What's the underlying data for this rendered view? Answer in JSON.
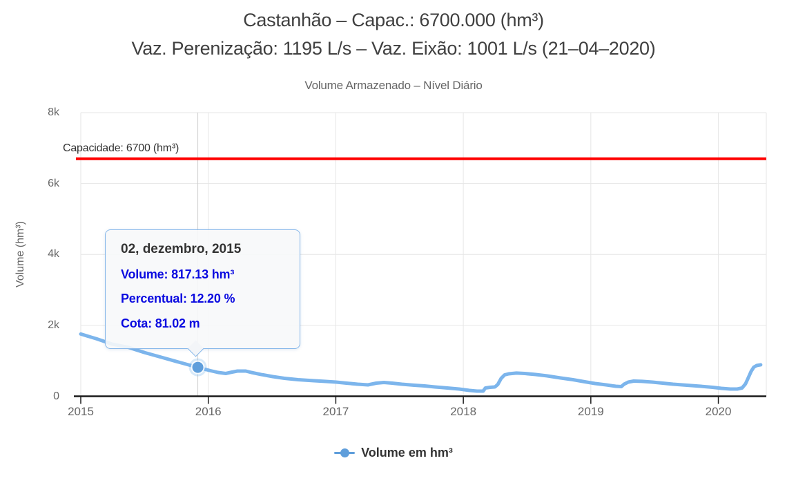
{
  "header": {
    "title_line1": "Castanhão – Capac.: 6700.000 (hm³)",
    "title_line2": "Vaz. Perenização: 1195 L/s – Vaz. Eixão: 1001 L/s (21–04–2020)",
    "subtitle": "Volume Armazenado – Nível Diário"
  },
  "tooltip": {
    "date": "02, dezembro, 2015",
    "volume_line": "Volume: 817.13 hm³",
    "percent_line": "Percentual: 12.20 %",
    "cota_line": "Cota: 81.02 m"
  },
  "legend": {
    "label": "Volume em hm³"
  },
  "colors": {
    "series_line": "#7cb5ec",
    "marker_fill": "#5f9edb",
    "marker_halo": "rgba(124,181,236,0.30)",
    "capacity_line": "#ff0000",
    "gridline": "#e6e6e6",
    "crosshair": "#cccccc",
    "axis_line": "#1a1a1a"
  },
  "chart_data": {
    "type": "line",
    "title": "Castanhão – Capac.: 6700.000 (hm³)",
    "subtitle": "Volume Armazenado – Nível Diário",
    "xlabel": "",
    "ylabel": "Volume (hm³)",
    "x_axis": {
      "min": 2015,
      "max": 2020.376,
      "ticks": [
        {
          "value": 2015,
          "label": "2015"
        },
        {
          "value": 2016,
          "label": "2016"
        },
        {
          "value": 2017,
          "label": "2017"
        },
        {
          "value": 2018,
          "label": "2018"
        },
        {
          "value": 2019,
          "label": "2019"
        },
        {
          "value": 2020,
          "label": "2020"
        }
      ]
    },
    "y_axis": {
      "min": 0,
      "max": 8000,
      "ticks": [
        {
          "value": 0,
          "label": "0"
        },
        {
          "value": 2000,
          "label": "2k"
        },
        {
          "value": 4000,
          "label": "4k"
        },
        {
          "value": 6000,
          "label": "6k"
        },
        {
          "value": 8000,
          "label": "8k"
        }
      ]
    },
    "capacity_line": {
      "value": 6700,
      "label": "Capacidade: 6700 (hm³)"
    },
    "highlight_point": {
      "x": 2015.918,
      "y": 817.13,
      "date": "02, dezembro, 2015",
      "percent": 12.2,
      "cota": 81.02
    },
    "series": [
      {
        "name": "Volume em hm³",
        "unit": "hm³",
        "points": [
          [
            2015.0,
            1756
          ],
          [
            2015.125,
            1620
          ],
          [
            2015.244,
            1473
          ],
          [
            2015.368,
            1385
          ],
          [
            2015.503,
            1229
          ],
          [
            2015.639,
            1093
          ],
          [
            2015.774,
            956
          ],
          [
            2015.882,
            849
          ],
          [
            2015.918,
            817.13
          ],
          [
            2015.964,
            771
          ],
          [
            2016.018,
            722
          ],
          [
            2016.077,
            673
          ],
          [
            2016.137,
            644
          ],
          [
            2016.186,
            683
          ],
          [
            2016.229,
            712
          ],
          [
            2016.294,
            712
          ],
          [
            2016.337,
            673
          ],
          [
            2016.413,
            615
          ],
          [
            2016.505,
            556
          ],
          [
            2016.597,
            507
          ],
          [
            2016.705,
            468
          ],
          [
            2016.83,
            439
          ],
          [
            2016.911,
            420
          ],
          [
            2017.003,
            400
          ],
          [
            2017.084,
            371
          ],
          [
            2017.171,
            341
          ],
          [
            2017.252,
            322
          ],
          [
            2017.317,
            371
          ],
          [
            2017.377,
            390
          ],
          [
            2017.442,
            371
          ],
          [
            2017.517,
            341
          ],
          [
            2017.615,
            312
          ],
          [
            2017.696,
            293
          ],
          [
            2017.777,
            263
          ],
          [
            2017.875,
            234
          ],
          [
            2017.967,
            205
          ],
          [
            2018.048,
            166
          ],
          [
            2018.107,
            146
          ],
          [
            2018.156,
            146
          ],
          [
            2018.173,
            234
          ],
          [
            2018.21,
            254
          ],
          [
            2018.248,
            263
          ],
          [
            2018.27,
            332
          ],
          [
            2018.297,
            507
          ],
          [
            2018.324,
            605
          ],
          [
            2018.356,
            634
          ],
          [
            2018.416,
            654
          ],
          [
            2018.481,
            644
          ],
          [
            2018.562,
            615
          ],
          [
            2018.654,
            576
          ],
          [
            2018.763,
            517
          ],
          [
            2018.86,
            468
          ],
          [
            2018.952,
            410
          ],
          [
            2019.033,
            361
          ],
          [
            2019.12,
            322
          ],
          [
            2019.196,
            283
          ],
          [
            2019.239,
            273
          ],
          [
            2019.261,
            341
          ],
          [
            2019.293,
            400
          ],
          [
            2019.336,
            429
          ],
          [
            2019.401,
            420
          ],
          [
            2019.483,
            400
          ],
          [
            2019.564,
            371
          ],
          [
            2019.645,
            341
          ],
          [
            2019.753,
            312
          ],
          [
            2019.862,
            283
          ],
          [
            2019.954,
            254
          ],
          [
            2020.024,
            224
          ],
          [
            2020.094,
            205
          ],
          [
            2020.148,
            205
          ],
          [
            2020.186,
            234
          ],
          [
            2020.213,
            351
          ],
          [
            2020.235,
            527
          ],
          [
            2020.257,
            702
          ],
          [
            2020.278,
            820
          ],
          [
            2020.3,
            868
          ],
          [
            2020.332,
            888
          ]
        ]
      }
    ]
  }
}
